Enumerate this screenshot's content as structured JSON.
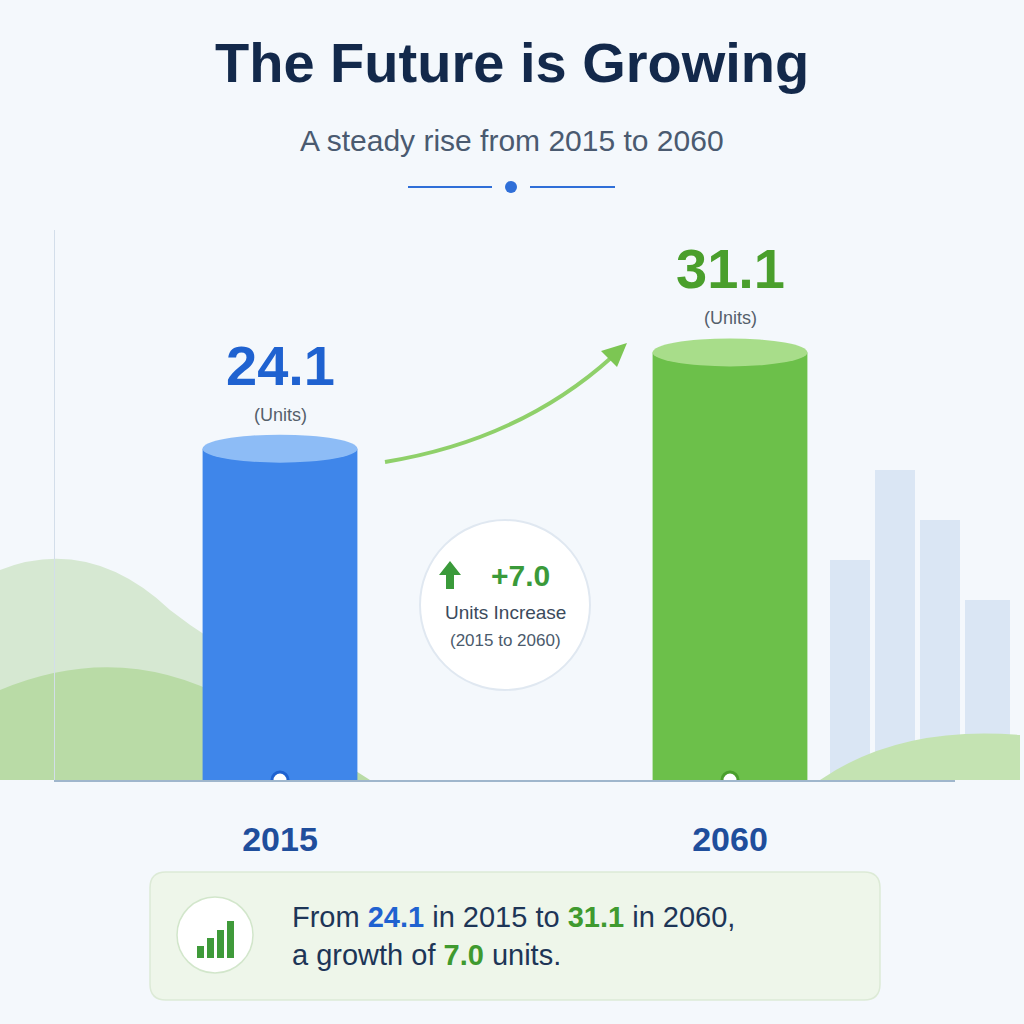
{
  "chart_data": {
    "type": "bar",
    "title": "The Future is Growing",
    "subtitle": "A steady rise from 2015 to 2060",
    "categories": [
      "2015",
      "2060"
    ],
    "values": [
      24.1,
      31.1
    ],
    "colors": [
      "#3f86ea",
      "#6cc04a"
    ],
    "ylim": [
      0,
      40
    ],
    "data_labels": true,
    "unit_label": "(Units)",
    "grid": false,
    "tick_labels": "x",
    "badge": {
      "change": "+7.0",
      "label": "Units Increase",
      "period": "(2015 to 2060)"
    },
    "footer": "From 24.1 in 2015 to 31.1 in 2060,\na growth of 7.0 units."
  }
}
